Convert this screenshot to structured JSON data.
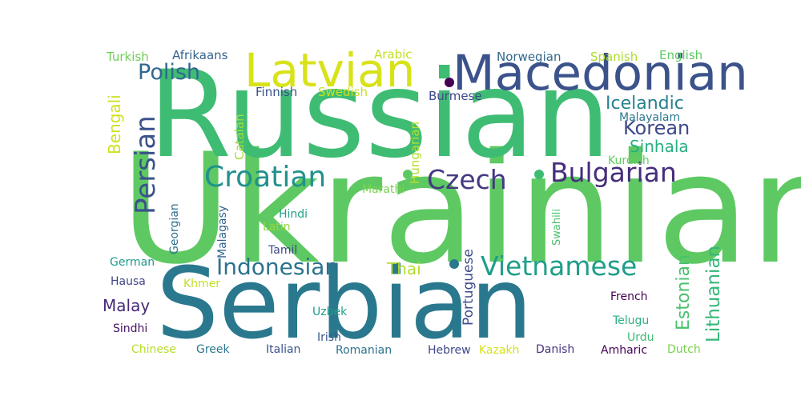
{
  "words": [
    {
      "text": "Ukrainian",
      "color": "#5ec962"
    },
    {
      "text": "Russian",
      "color": "#3fbc73"
    },
    {
      "text": "Serbian",
      "color": "#2a788e"
    },
    {
      "text": "Macedonian",
      "color": "#3b528b"
    },
    {
      "text": "Latvian",
      "color": "#d8e219"
    },
    {
      "text": "Croatian",
      "color": "#21918c"
    },
    {
      "text": "Bulgarian",
      "color": "#472d7b"
    },
    {
      "text": "Czech",
      "color": "#443983"
    },
    {
      "text": "Vietnamese",
      "color": "#1f9e89"
    },
    {
      "text": "Indonesian",
      "color": "#2c728e"
    },
    {
      "text": "Persian",
      "color": "#3b528b"
    },
    {
      "text": "Polish",
      "color": "#31688e"
    },
    {
      "text": "Lithuanian",
      "color": "#35b779"
    },
    {
      "text": "Estonian",
      "color": "#4ac16d"
    },
    {
      "text": "Korean",
      "color": "#3e4a89"
    },
    {
      "text": "Icelandic",
      "color": "#26828e"
    },
    {
      "text": "Sinhala",
      "color": "#28ae80"
    },
    {
      "text": "Bengali",
      "color": "#d0e11c"
    },
    {
      "text": "Malay",
      "color": "#482878"
    },
    {
      "text": "Thai",
      "color": "#b5de2b"
    },
    {
      "text": "Portuguese",
      "color": "#3e4c8a"
    },
    {
      "text": "Turkish",
      "color": "#6ece58"
    },
    {
      "text": "Afrikaans",
      "color": "#33638d"
    },
    {
      "text": "Arabic",
      "color": "#c2df23"
    },
    {
      "text": "Norwegian",
      "color": "#31688e"
    },
    {
      "text": "Spanish",
      "color": "#addc30"
    },
    {
      "text": "English",
      "color": "#5ec962"
    },
    {
      "text": "Finnish",
      "color": "#3b528b"
    },
    {
      "text": "Swedish",
      "color": "#c8e020"
    },
    {
      "text": "Burmese",
      "color": "#3e4a89"
    },
    {
      "text": "Catalan",
      "color": "#a5db36"
    },
    {
      "text": "Hungarian",
      "color": "#b5de2b"
    },
    {
      "text": "Malayalam",
      "color": "#2a788e"
    },
    {
      "text": "Kurdish",
      "color": "#63cb5f"
    },
    {
      "text": "Marathi",
      "color": "#7ad151"
    },
    {
      "text": "Georgian",
      "color": "#2d708e"
    },
    {
      "text": "Malagasy",
      "color": "#32648e"
    },
    {
      "text": "Hindi",
      "color": "#1fa187"
    },
    {
      "text": "Latin",
      "color": "#93d741"
    },
    {
      "text": "Swahili",
      "color": "#4ac16d"
    },
    {
      "text": "Tamil",
      "color": "#3e4a89"
    },
    {
      "text": "German",
      "color": "#1f988b"
    },
    {
      "text": "Hausa",
      "color": "#414487"
    },
    {
      "text": "Khmer",
      "color": "#c2df23"
    },
    {
      "text": "French",
      "color": "#440154"
    },
    {
      "text": "Uzbek",
      "color": "#1f9e89"
    },
    {
      "text": "Telugu",
      "color": "#2db27d"
    },
    {
      "text": "Sindhi",
      "color": "#471365"
    },
    {
      "text": "Irish",
      "color": "#39568c"
    },
    {
      "text": "Urdu",
      "color": "#3fbc73"
    },
    {
      "text": "Amharic",
      "color": "#440154"
    },
    {
      "text": "Dutch",
      "color": "#7ad151"
    },
    {
      "text": "Chinese",
      "color": "#b5de2b"
    },
    {
      "text": "Greek",
      "color": "#2a788e"
    },
    {
      "text": "Italian",
      "color": "#3b528b"
    },
    {
      "text": "Romanian",
      "color": "#2c728e"
    },
    {
      "text": "Hebrew",
      "color": "#404688"
    },
    {
      "text": "Kazakh",
      "color": "#d2e21b"
    },
    {
      "text": "Danish",
      "color": "#46327e"
    }
  ],
  "dots": [
    {
      "name": "dot-1",
      "color": "#440154"
    },
    {
      "name": "dot-2",
      "color": "#5ec962"
    },
    {
      "name": "dot-3",
      "color": "#3fbc73"
    },
    {
      "name": "dot-4",
      "color": "#2a788e"
    }
  ]
}
